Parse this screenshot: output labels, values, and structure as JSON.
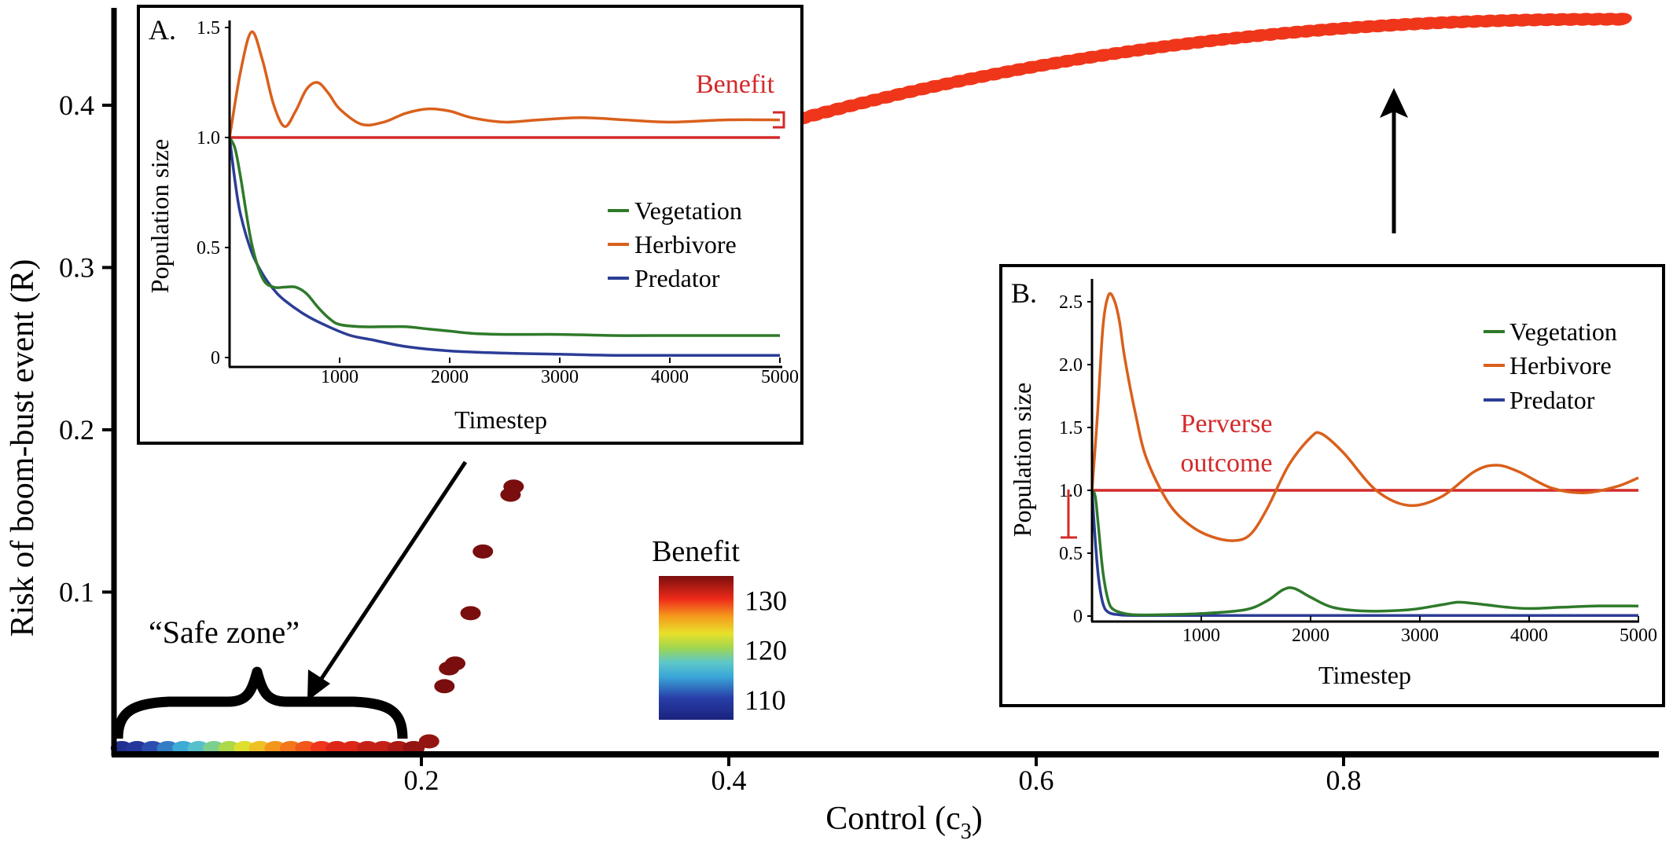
{
  "chart_data": [
    {
      "id": "main",
      "type": "scatter",
      "xlabel": "Control (c",
      "xlabel_sub": "3",
      "xlabel_close": ")",
      "ylabel": "Risk of boom-bust event (R)",
      "xlim": [
        0,
        1
      ],
      "ylim": [
        0,
        0.46
      ],
      "xticks": [
        0.2,
        0.4,
        0.6,
        0.8
      ],
      "xtick_labels": [
        "0.2",
        "0.4",
        "0.6",
        "0.8"
      ],
      "yticks": [
        0.1,
        0.2,
        0.3,
        0.4
      ],
      "ytick_labels": [
        "0.1",
        "0.2",
        "0.3",
        "0.4"
      ],
      "grid": false,
      "color_encoding": "Benefit",
      "points_safe_zone": {
        "x": [
          0.005,
          0.015,
          0.025,
          0.035,
          0.045,
          0.055,
          0.065,
          0.075,
          0.085,
          0.095,
          0.105,
          0.115,
          0.125,
          0.135,
          0.145,
          0.155,
          0.165,
          0.175,
          0.185,
          0.195
        ],
        "y": [
          0,
          0,
          0,
          0,
          0,
          0,
          0,
          0,
          0,
          0,
          0,
          0,
          0,
          0,
          0,
          0,
          0,
          0,
          0,
          0
        ],
        "benefit": [
          108,
          109,
          111,
          113,
          115,
          117,
          119,
          121,
          123,
          125,
          127,
          128,
          129,
          130,
          131,
          131,
          132,
          132,
          133,
          134
        ]
      },
      "points_rising": {
        "x": [
          0.205,
          0.215,
          0.218,
          0.222,
          0.232,
          0.24,
          0.258,
          0.26
        ],
        "y": [
          0.008,
          0.042,
          0.053,
          0.056,
          0.087,
          0.125,
          0.16,
          0.165
        ],
        "benefit": [
          134,
          135,
          135,
          135,
          135,
          135,
          135,
          135
        ]
      },
      "curve_high": {
        "x_start": 0.44,
        "x_end": 0.98,
        "y_start": 0.39,
        "y_end": 0.453,
        "benefit": 130
      },
      "annotations": {
        "safe_zone": "“Safe zone”"
      }
    },
    {
      "id": "inset-a",
      "type": "line",
      "panel_label": "A.",
      "xlabel": "Timestep",
      "ylabel": "Population size",
      "xlim": [
        0,
        5000
      ],
      "ylim": [
        0,
        1.5
      ],
      "xticks": [
        1000,
        2000,
        3000,
        4000,
        5000
      ],
      "xtick_labels": [
        "1000",
        "2000",
        "3000",
        "4000",
        "5000"
      ],
      "yticks": [
        0,
        0.5,
        1.0,
        1.5
      ],
      "ytick_labels": [
        "0",
        "0.5",
        "1.0",
        "1.5"
      ],
      "legend": [
        "Vegetation",
        "Herbivore",
        "Predator"
      ],
      "legend_position": "right",
      "series": [
        {
          "name": "Herbivore",
          "x": [
            0,
            100,
            200,
            300,
            400,
            500,
            600,
            700,
            800,
            900,
            1000,
            1200,
            1400,
            1600,
            1800,
            2000,
            2200,
            2500,
            2800,
            3200,
            3600,
            4000,
            4500,
            5000
          ],
          "y": [
            1.0,
            1.3,
            1.48,
            1.35,
            1.15,
            1.05,
            1.12,
            1.22,
            1.25,
            1.2,
            1.13,
            1.06,
            1.07,
            1.11,
            1.13,
            1.12,
            1.09,
            1.07,
            1.08,
            1.09,
            1.08,
            1.07,
            1.08,
            1.08
          ]
        },
        {
          "name": "Vegetation",
          "x": [
            0,
            50,
            100,
            200,
            300,
            400,
            500,
            600,
            700,
            800,
            900,
            1000,
            1200,
            1400,
            1600,
            1800,
            2000,
            2200,
            2500,
            3000,
            3500,
            4000,
            4500,
            5000
          ],
          "y": [
            1.0,
            0.95,
            0.82,
            0.52,
            0.36,
            0.32,
            0.32,
            0.32,
            0.29,
            0.23,
            0.18,
            0.15,
            0.14,
            0.14,
            0.14,
            0.13,
            0.12,
            0.11,
            0.105,
            0.105,
            0.1,
            0.1,
            0.1,
            0.1
          ]
        },
        {
          "name": "Predator",
          "x": [
            0,
            50,
            100,
            200,
            300,
            400,
            500,
            700,
            900,
            1100,
            1300,
            1600,
            2000,
            2500,
            3000,
            3500,
            4000,
            4500,
            5000
          ],
          "y": [
            1.0,
            0.8,
            0.65,
            0.48,
            0.38,
            0.31,
            0.26,
            0.19,
            0.14,
            0.1,
            0.08,
            0.05,
            0.03,
            0.02,
            0.015,
            0.01,
            0.01,
            0.01,
            0.01
          ]
        },
        {
          "name": "",
          "x": [
            0,
            5000
          ],
          "y": [
            1.0,
            1.0
          ]
        }
      ],
      "annotations": {
        "benefit": "Benefit"
      }
    },
    {
      "id": "inset-b",
      "type": "line",
      "panel_label": "B.",
      "xlabel": "Timestep",
      "ylabel": "Population size",
      "xlim": [
        0,
        5000
      ],
      "ylim": [
        0,
        2.6
      ],
      "xticks": [
        1000,
        2000,
        3000,
        4000,
        5000
      ],
      "xtick_labels": [
        "1000",
        "2000",
        "3000",
        "4000",
        "5000"
      ],
      "yticks": [
        0,
        0.5,
        1.0,
        1.5,
        2.0,
        2.5
      ],
      "ytick_labels": [
        "0",
        "0.5",
        "1.0",
        "1.5",
        "2.0",
        "2.5"
      ],
      "legend": [
        "Vegetation",
        "Herbivore",
        "Predator"
      ],
      "legend_position": "top-right",
      "series": [
        {
          "name": "Herbivore",
          "x": [
            0,
            50,
            100,
            150,
            200,
            250,
            300,
            400,
            500,
            700,
            900,
            1100,
            1300,
            1450,
            1600,
            1800,
            2000,
            2100,
            2300,
            2600,
            2900,
            3200,
            3500,
            3700,
            3900,
            4200,
            4500,
            4800,
            5000
          ],
          "y": [
            1.0,
            1.6,
            2.3,
            2.55,
            2.52,
            2.35,
            2.05,
            1.6,
            1.25,
            0.9,
            0.72,
            0.63,
            0.6,
            0.65,
            0.85,
            1.2,
            1.42,
            1.45,
            1.3,
            1.0,
            0.88,
            0.95,
            1.15,
            1.2,
            1.15,
            1.02,
            0.98,
            1.03,
            1.1
          ]
        },
        {
          "name": "Vegetation",
          "x": [
            0,
            30,
            60,
            100,
            150,
            200,
            300,
            400,
            600,
            1000,
            1400,
            1600,
            1750,
            1850,
            2000,
            2200,
            2500,
            2900,
            3200,
            3350,
            3500,
            3800,
            4000,
            4300,
            4600,
            5000
          ],
          "y": [
            1.0,
            0.95,
            0.7,
            0.35,
            0.12,
            0.05,
            0.02,
            0.01,
            0.01,
            0.02,
            0.05,
            0.12,
            0.21,
            0.22,
            0.15,
            0.07,
            0.04,
            0.05,
            0.09,
            0.11,
            0.1,
            0.07,
            0.06,
            0.07,
            0.08,
            0.08
          ]
        },
        {
          "name": "Predator",
          "x": [
            0,
            30,
            60,
            100,
            150,
            250,
            400,
            1000,
            2000,
            3000,
            4000,
            5000
          ],
          "y": [
            1.0,
            0.6,
            0.3,
            0.1,
            0.03,
            0.01,
            0.005,
            0.005,
            0.005,
            0.005,
            0.005,
            0.005
          ]
        },
        {
          "name": "",
          "x": [
            0,
            5000
          ],
          "y": [
            1.0,
            1.0
          ]
        }
      ],
      "annotations": {
        "perverse_line1": "Perverse",
        "perverse_line2": "outcome"
      }
    }
  ],
  "colorbar": {
    "title": "Benefit",
    "min": 106,
    "max": 135,
    "ticks": [
      130,
      120,
      110
    ],
    "tick_labels": [
      "130",
      "120",
      "110"
    ]
  },
  "colors": {
    "vegetation": "#2e7a2a",
    "herbivore": "#d9601c",
    "predator": "#2c3d96",
    "reference": "#d42a2a",
    "axis": "#000000"
  }
}
